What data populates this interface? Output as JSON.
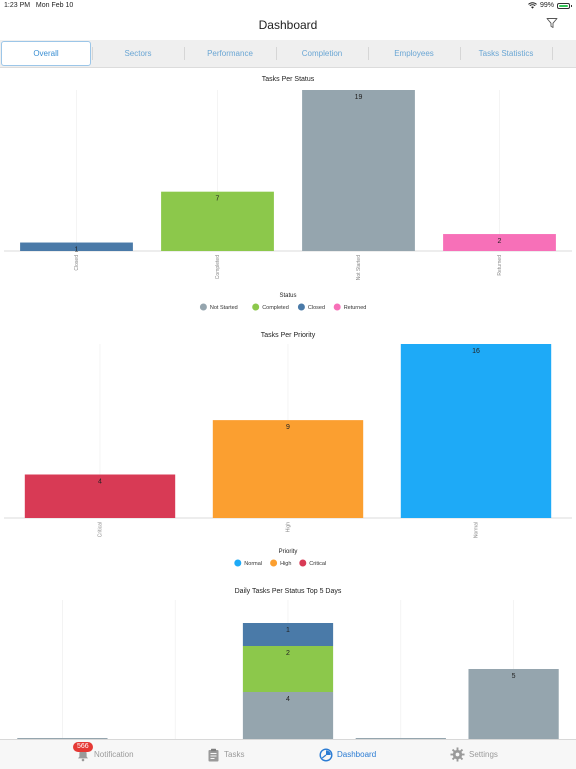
{
  "status_bar": {
    "time": "1:23 PM",
    "date": "Mon Feb 10",
    "battery": "99%",
    "battery_level": 0.99
  },
  "header": {
    "title": "Dashboard",
    "filter_icon": "filter-icon"
  },
  "tabs": [
    {
      "label": "Overall",
      "active": true
    },
    {
      "label": "Sectors"
    },
    {
      "label": "Performance"
    },
    {
      "label": "Completion"
    },
    {
      "label": "Employees"
    },
    {
      "label": "Tasks Statistics"
    }
  ],
  "chart_data": [
    {
      "type": "bar",
      "title": "Tasks Per Status",
      "categories": [
        "Closed",
        "Completed",
        "Not Started",
        "Returned"
      ],
      "values": [
        1,
        7,
        19,
        2
      ],
      "colors": [
        "#4a7aa8",
        "#8cc84b",
        "#95a5ae",
        "#f770b8"
      ],
      "ylim": [
        0,
        19
      ],
      "grid": true,
      "legend_title": "Status",
      "legend": [
        {
          "label": "Not Started",
          "color": "#95a5ae"
        },
        {
          "label": "Completed",
          "color": "#8cc84b"
        },
        {
          "label": "Closed",
          "color": "#4a7aa8"
        },
        {
          "label": "Returned",
          "color": "#f770b8"
        }
      ],
      "legend_position": "bottom"
    },
    {
      "type": "bar",
      "title": "Tasks Per Priority",
      "categories": [
        "Critical",
        "High",
        "Normal"
      ],
      "values": [
        4,
        9,
        16
      ],
      "colors": [
        "#d83a55",
        "#fb9f30",
        "#1eaaf7"
      ],
      "ylim": [
        0,
        16
      ],
      "grid": true,
      "legend_title": "Priority",
      "legend": [
        {
          "label": "Normal",
          "color": "#1eaaf7"
        },
        {
          "label": "High",
          "color": "#fb9f30"
        },
        {
          "label": "Critical",
          "color": "#d83a55"
        }
      ],
      "legend_position": "bottom"
    },
    {
      "type": "bar",
      "stacked": true,
      "title": "Daily Tasks Per Status Top 5 Days",
      "categories": [
        "",
        "",
        "",
        "",
        ""
      ],
      "series": [
        {
          "values": [
            2,
            0,
            4,
            2,
            5
          ],
          "color": "#95a5ae"
        },
        {
          "values": [
            0,
            0,
            2,
            0,
            0
          ],
          "color": "#8cc84b"
        },
        {
          "values": [
            0,
            0,
            1,
            0,
            0
          ],
          "color": "#4a7aa8"
        }
      ],
      "grid": true
    }
  ],
  "tab_bar": [
    {
      "label": "Notification",
      "icon": "bell-icon",
      "badge": "566"
    },
    {
      "label": "Tasks",
      "icon": "clipboard-icon"
    },
    {
      "label": "Dashboard",
      "icon": "dashboard-icon",
      "active": true
    },
    {
      "label": "Settings",
      "icon": "gear-icon"
    }
  ]
}
